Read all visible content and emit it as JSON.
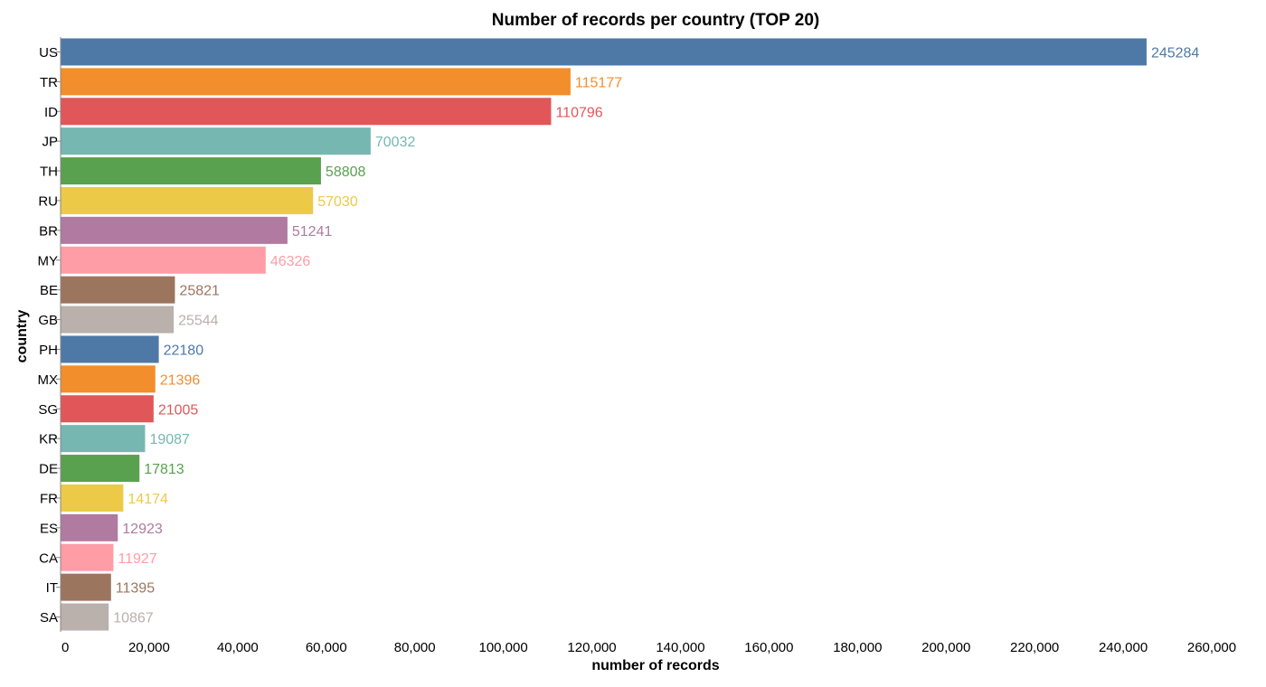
{
  "chart_data": {
    "type": "bar",
    "orientation": "horizontal",
    "title": "Number of records per country (TOP 20)",
    "xlabel": "number of records",
    "ylabel": "country",
    "xlim": [
      0,
      260000
    ],
    "x_ticks": [
      "0",
      "20,000",
      "40,000",
      "60,000",
      "80,000",
      "100,000",
      "120,000",
      "140,000",
      "160,000",
      "180,000",
      "200,000",
      "220,000",
      "240,000",
      "260,000"
    ],
    "grid": false,
    "categories": [
      "US",
      "TR",
      "ID",
      "JP",
      "TH",
      "RU",
      "BR",
      "MY",
      "BE",
      "GB",
      "PH",
      "MX",
      "SG",
      "KR",
      "DE",
      "FR",
      "ES",
      "CA",
      "IT",
      "SA"
    ],
    "values": [
      245284,
      115177,
      110796,
      70032,
      58808,
      57030,
      51241,
      46326,
      25821,
      25544,
      22180,
      21396,
      21005,
      19087,
      17813,
      14174,
      12923,
      11927,
      11395,
      10867
    ],
    "colors": [
      "#4e79a7",
      "#f28e2b",
      "#e15759",
      "#76b7b2",
      "#59a14f",
      "#edc948",
      "#b07aa1",
      "#ff9da7",
      "#9c755f",
      "#bab0ac",
      "#4e79a7",
      "#f28e2b",
      "#e15759",
      "#76b7b2",
      "#59a14f",
      "#edc948",
      "#b07aa1",
      "#ff9da7",
      "#9c755f",
      "#bab0ac"
    ],
    "label_colors": [
      "#4e79a7",
      "#f28e2b",
      "#e15759",
      "#76b7b2",
      "#59a14f",
      "#edc948",
      "#b07aa1",
      "#ff9da7",
      "#9c755f",
      "#bab0ac",
      "#4e79a7",
      "#f28e2b",
      "#e15759",
      "#76b7b2",
      "#59a14f",
      "#edc948",
      "#b07aa1",
      "#ff9da7",
      "#9c755f",
      "#bab0ac"
    ]
  }
}
